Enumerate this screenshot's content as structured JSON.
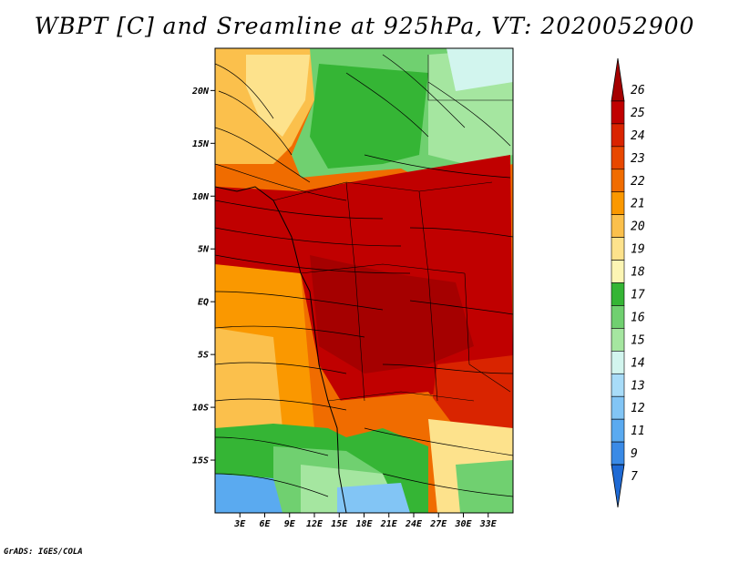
{
  "title": "WBPT [C] and Sreamline at 925hPa, VT: 2020052900",
  "credit": "GrADS: IGES/COLA",
  "map": {
    "lon_range": [
      0,
      36
    ],
    "lat_range": [
      -20,
      24
    ],
    "lat_ticks": [
      {
        "lat": 20,
        "label": "20N"
      },
      {
        "lat": 15,
        "label": "15N"
      },
      {
        "lat": 10,
        "label": "10N"
      },
      {
        "lat": 5,
        "label": "5N"
      },
      {
        "lat": 0,
        "label": "EQ"
      },
      {
        "lat": -5,
        "label": "5S"
      },
      {
        "lat": -10,
        "label": "10S"
      },
      {
        "lat": -15,
        "label": "15S"
      }
    ],
    "lon_ticks": [
      {
        "lon": 3,
        "label": "3E"
      },
      {
        "lon": 6,
        "label": "6E"
      },
      {
        "lon": 9,
        "label": "9E"
      },
      {
        "lon": 12,
        "label": "12E"
      },
      {
        "lon": 15,
        "label": "15E"
      },
      {
        "lon": 18,
        "label": "18E"
      },
      {
        "lon": 21,
        "label": "21E"
      },
      {
        "lon": 24,
        "label": "24E"
      },
      {
        "lon": 27,
        "label": "27E"
      },
      {
        "lon": 30,
        "label": "30E"
      },
      {
        "lon": 33,
        "label": "33E"
      }
    ]
  },
  "colorbar": {
    "levels": [
      {
        "label": "26",
        "color": "#a50000"
      },
      {
        "label": "25",
        "color": "#c00000"
      },
      {
        "label": "24",
        "color": "#d92400"
      },
      {
        "label": "23",
        "color": "#e84800"
      },
      {
        "label": "22",
        "color": "#f06c00"
      },
      {
        "label": "21",
        "color": "#fa9800"
      },
      {
        "label": "20",
        "color": "#fbc04c"
      },
      {
        "label": "19",
        "color": "#fde28c"
      },
      {
        "label": "18",
        "color": "#fcf5b4"
      },
      {
        "label": "17",
        "color": "#35b535"
      },
      {
        "label": "16",
        "color": "#70d070"
      },
      {
        "label": "15",
        "color": "#a5e6a0"
      },
      {
        "label": "14",
        "color": "#d2f5ee"
      },
      {
        "label": "13",
        "color": "#a8dcf8"
      },
      {
        "label": "12",
        "color": "#82c5f5"
      },
      {
        "label": "11",
        "color": "#5aaaf0"
      },
      {
        "label": "9",
        "color": "#3a8ae6"
      },
      {
        "label": "7",
        "color": "#1f6ad4"
      }
    ]
  }
}
